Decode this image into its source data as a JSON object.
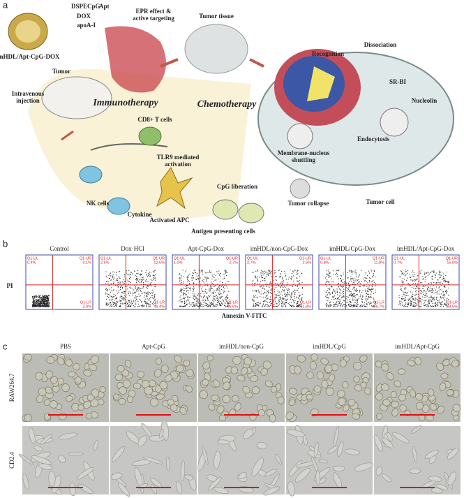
{
  "panels": {
    "a": "a",
    "b": "b",
    "c": "c"
  },
  "diagram": {
    "labels": [
      "imHDL/Apt-CpG-DOX",
      "DSPE",
      "CpG",
      "Apt",
      "DOX",
      "apoA-I",
      "Tumor",
      "Intravenous injection",
      "EPR effect & active targeting",
      "Tumor tissue",
      "Recognition",
      "Dissociation",
      "SR-BI",
      "Nucleolin",
      "Endocytosis",
      "Membrane-nucleus shuttling",
      "CD8+ T cells",
      "TLR9 mediated activation",
      "CpG liberation",
      "Tumor collapse",
      "Tumor cell",
      "NK cells",
      "Cytokine",
      "Activated APC",
      "Antigen presenting cells"
    ],
    "chemotherapy": "Chemotherapy",
    "immunotherapy": "Immunotherapy"
  },
  "flow": {
    "y_label": "PI",
    "x_label": "Annexin V-FITC",
    "quadrants": [
      "Q1-UL",
      "Q1-UR",
      "Q1-LR"
    ],
    "plots": [
      {
        "title": "Control",
        "values": [
          "0.4%",
          "0.1%",
          "3.0%"
        ]
      },
      {
        "title": "Dox·HCl",
        "values": [
          "2.5%",
          "12.6%",
          "49.4%"
        ]
      },
      {
        "title": "Apt-CpG-Dox",
        "values": [
          "1.0%",
          "2.7%",
          "66.6%"
        ]
      },
      {
        "title": "imHDL/non-CpG-Dox",
        "values": [
          "2.7%",
          "2.6%",
          "61.8%"
        ]
      },
      {
        "title": "imHDL/CpG-Dox",
        "values": [
          "0.8%",
          "11.8%",
          "69.7%"
        ]
      },
      {
        "title": "imHDL/Apt-CpG-Dox",
        "values": [
          "0.7%",
          "15.0%",
          "64.5%"
        ]
      }
    ]
  },
  "micrographs": {
    "columns": [
      "PBS",
      "Apt-CpG",
      "imHDL/non-CpG",
      "imHDL/CpG",
      "imHDL/Apt-CpG"
    ],
    "rows": [
      "RAW264.7",
      "CD2.4"
    ]
  }
}
